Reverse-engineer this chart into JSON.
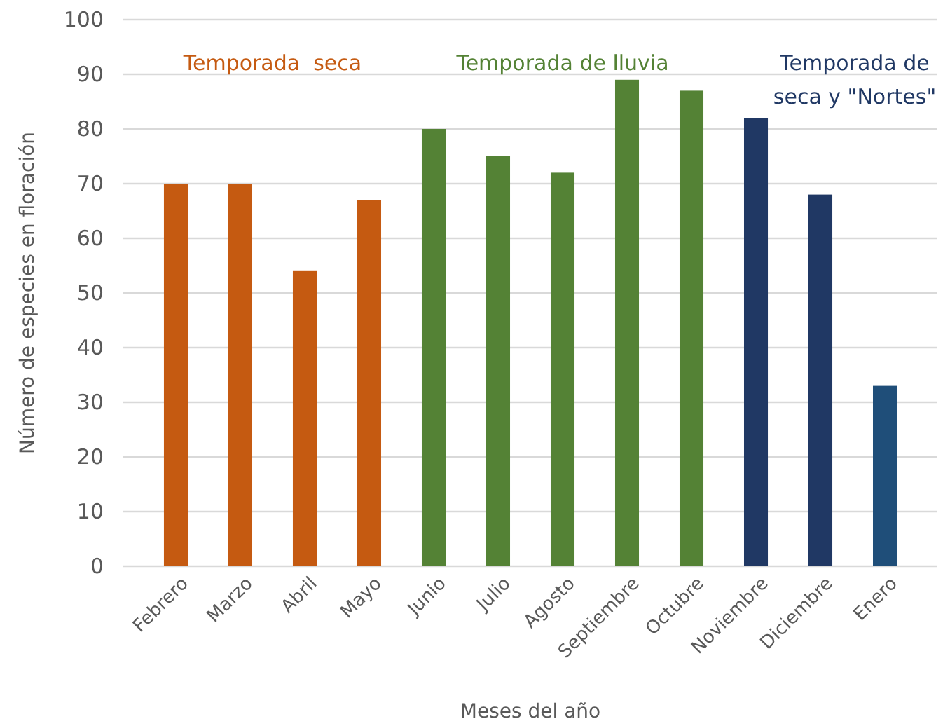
{
  "chart_data": {
    "type": "bar",
    "xlabel": "Meses del año",
    "ylabel": "Número de especies en floración",
    "categories": [
      "Febrero",
      "Marzo",
      "Abril",
      "Mayo",
      "Junio",
      "Julio",
      "Agosto",
      "Septiembre",
      "Octubre",
      "Noviembre",
      "Diciembre",
      "Enero"
    ],
    "values": [
      70,
      70,
      54,
      67,
      80,
      75,
      72,
      89,
      87,
      82,
      68,
      33
    ],
    "colors": [
      "#c55a11",
      "#c55a11",
      "#c55a11",
      "#c55a11",
      "#548235",
      "#548235",
      "#548235",
      "#548235",
      "#548235",
      "#203864",
      "#203864",
      "#1f4e79"
    ],
    "ylim": [
      0,
      100
    ],
    "yticks": [
      0,
      10,
      20,
      30,
      40,
      50,
      60,
      70,
      80,
      90,
      100
    ],
    "grid": "y",
    "annotations": [
      "Temporada  seca",
      "Temporada de lluvia",
      "Temporada de seca y \"Nortes\""
    ]
  }
}
